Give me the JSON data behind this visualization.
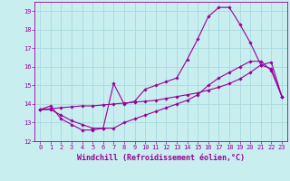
{
  "xlabel": "Windchill (Refroidissement éolien,°C)",
  "background_color": "#c8eef0",
  "grid_color": "#aad8dc",
  "line_color": "#990099",
  "xlim": [
    -0.5,
    23.5
  ],
  "ylim": [
    12,
    19.5
  ],
  "xticks": [
    0,
    1,
    2,
    3,
    4,
    5,
    6,
    7,
    8,
    9,
    10,
    11,
    12,
    13,
    14,
    15,
    16,
    17,
    18,
    19,
    20,
    21,
    22,
    23
  ],
  "yticks": [
    12,
    13,
    14,
    15,
    16,
    17,
    18,
    19
  ],
  "curve1_x": [
    0,
    1,
    2,
    3,
    4,
    5,
    6,
    7,
    8,
    9,
    10,
    11,
    12,
    13,
    14,
    15,
    16,
    17,
    18,
    19,
    20,
    21,
    22,
    23
  ],
  "curve1_y": [
    13.7,
    13.9,
    13.2,
    12.9,
    12.6,
    12.6,
    12.7,
    15.1,
    14.0,
    14.15,
    14.8,
    15.0,
    15.2,
    15.4,
    16.4,
    17.5,
    18.7,
    19.2,
    19.2,
    18.3,
    17.3,
    16.1,
    15.9,
    14.4
  ],
  "curve2_x": [
    0,
    1,
    2,
    3,
    4,
    5,
    6,
    7,
    8,
    9,
    10,
    11,
    12,
    13,
    14,
    15,
    16,
    17,
    18,
    19,
    20,
    21,
    22,
    23
  ],
  "curve2_y": [
    13.7,
    13.75,
    13.8,
    13.85,
    13.9,
    13.9,
    13.95,
    14.0,
    14.05,
    14.1,
    14.15,
    14.2,
    14.3,
    14.4,
    14.5,
    14.6,
    14.75,
    14.9,
    15.1,
    15.35,
    15.7,
    16.1,
    16.25,
    14.4
  ],
  "curve3_x": [
    0,
    1,
    2,
    3,
    4,
    5,
    6,
    7,
    8,
    9,
    10,
    11,
    12,
    13,
    14,
    15,
    16,
    17,
    18,
    19,
    20,
    21,
    22,
    23
  ],
  "curve3_y": [
    13.7,
    13.7,
    13.4,
    13.1,
    12.9,
    12.7,
    12.7,
    12.7,
    13.0,
    13.2,
    13.4,
    13.6,
    13.8,
    14.0,
    14.2,
    14.5,
    15.0,
    15.4,
    15.7,
    16.0,
    16.3,
    16.3,
    15.8,
    14.4
  ],
  "marker": "D",
  "marker_size": 1.8,
  "line_width": 0.8,
  "tick_fontsize": 5.0,
  "xlabel_fontsize": 6.0
}
